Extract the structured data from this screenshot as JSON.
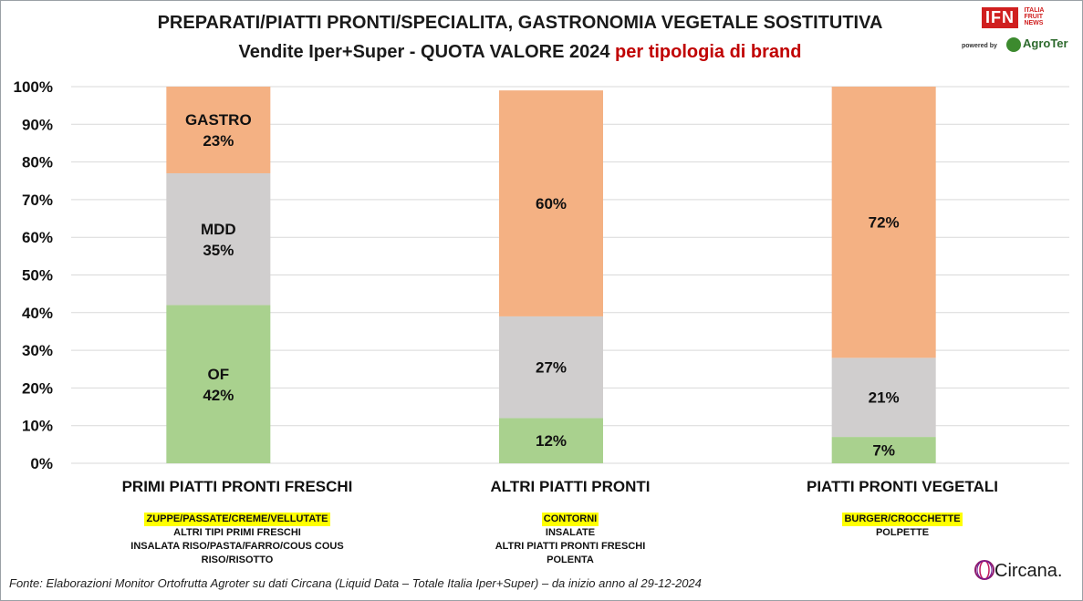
{
  "header": {
    "title_line1": "PREPARATI/PIATTI PRONTI/SPECIALITA, GASTRONOMIA VEGETALE SOSTITUTIVA",
    "title_line2_main": "Vendite Iper+Super - QUOTA VALORE 2024",
    "title_line2_red": "per tipologia di brand",
    "red_color": "#c00000"
  },
  "logos": {
    "ifn": "IFN",
    "ifn_side": [
      "ITALIA",
      "FRUIT",
      "NEWS"
    ],
    "powered_by": "powered by",
    "agroter": "AgroTer",
    "circana": "Circana."
  },
  "chart_data": {
    "type": "bar",
    "stacked": true,
    "categories": [
      "PRIMI PIATTI PRONTI FRESCHI",
      "ALTRI PIATTI PRONTI",
      "PIATTI PRONTI VEGETALI"
    ],
    "series": [
      {
        "name": "OF",
        "values": [
          42,
          12,
          7
        ],
        "color": "#a9d18e",
        "labels": [
          "OF\n42%",
          "12%",
          "7%"
        ]
      },
      {
        "name": "MDD",
        "values": [
          35,
          27,
          21
        ],
        "color": "#d0cece",
        "labels": [
          "MDD\n35%",
          "27%",
          "21%"
        ]
      },
      {
        "name": "GASTRO",
        "values": [
          23,
          60,
          72
        ],
        "color": "#f4b183",
        "labels": [
          "GASTRO\n23%",
          "60%",
          "72%"
        ]
      }
    ],
    "ylim": [
      0,
      100
    ],
    "yticks": [
      "0%",
      "10%",
      "20%",
      "30%",
      "40%",
      "50%",
      "60%",
      "70%",
      "80%",
      "90%",
      "100%"
    ],
    "grid": true,
    "legend": "none"
  },
  "subcategories": [
    {
      "highlight": "ZUPPE/PASSATE/CREME/VELLUTATE",
      "items": [
        "ALTRI TIPI PRIMI FRESCHI",
        "INSALATA RISO/PASTA/FARRO/COUS COUS",
        "RISO/RISOTTO"
      ]
    },
    {
      "highlight": "CONTORNI",
      "items": [
        "INSALATE",
        "ALTRI PIATTI PRONTI FRESCHI",
        "POLENTA"
      ]
    },
    {
      "highlight": "BURGER/CROCCHETTE",
      "items": [
        "POLPETTE"
      ]
    }
  ],
  "footer": "Fonte: Elaborazioni Monitor Ortofrutta Agroter su dati Circana (Liquid Data – Totale Italia Iper+Super) –  da inizio anno al 29-12-2024"
}
